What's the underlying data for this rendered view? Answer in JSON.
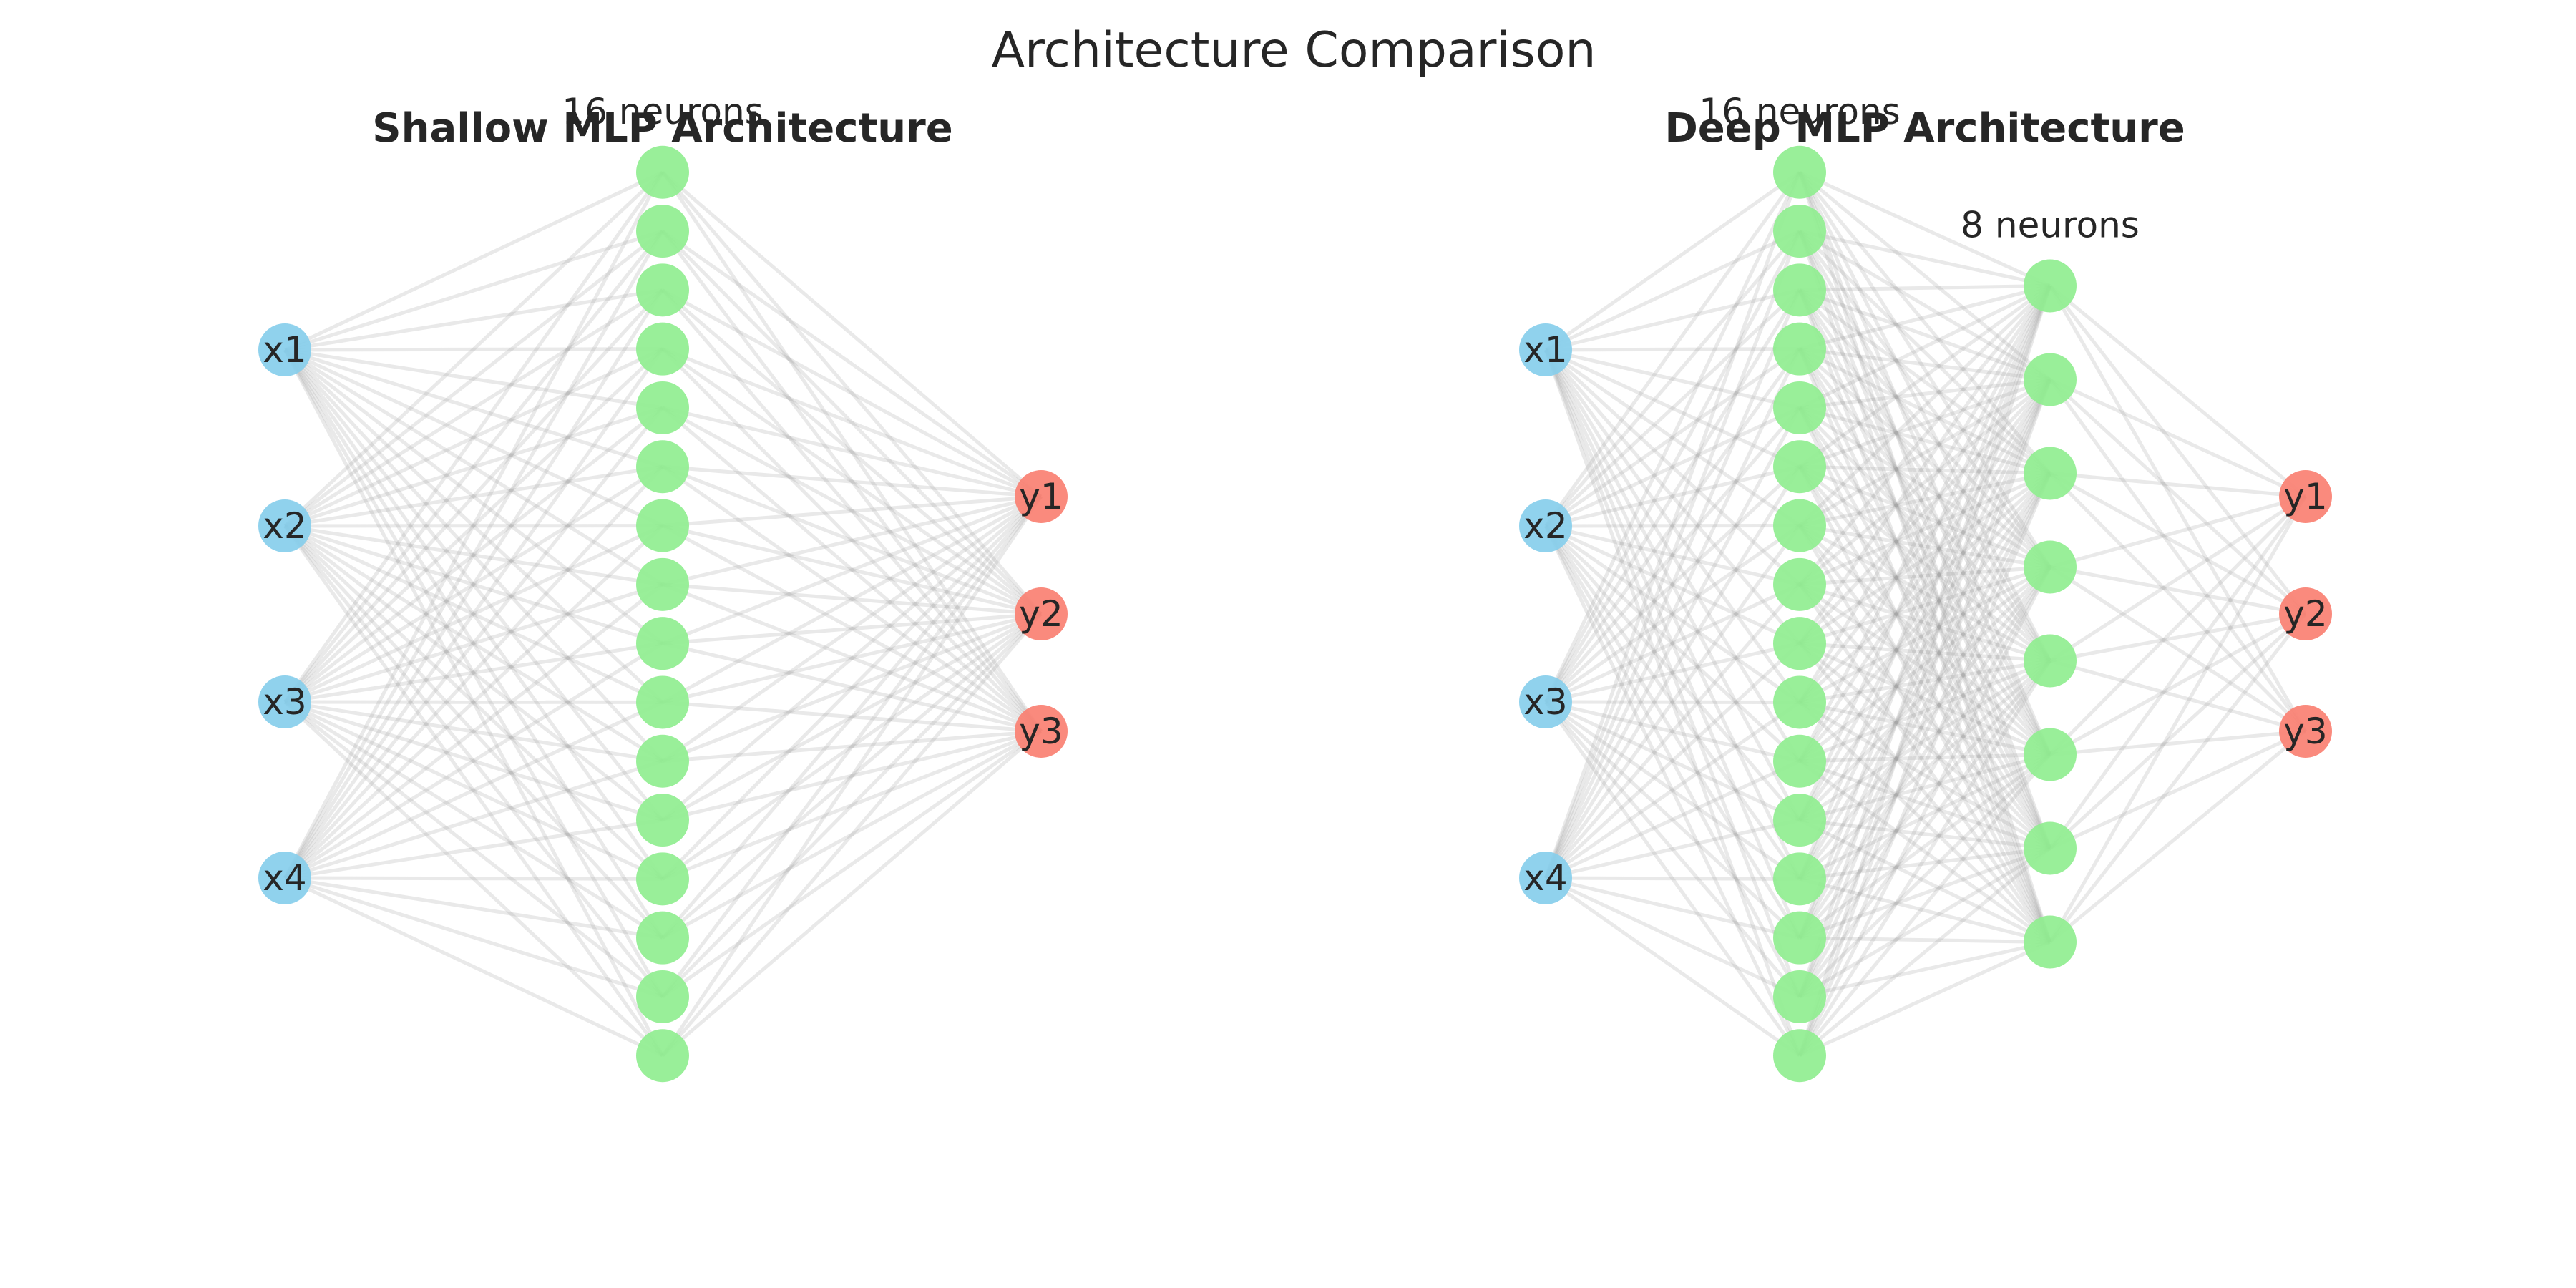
{
  "title": "Architecture Comparison",
  "colors": {
    "input": "#87ceeb",
    "hidden": "#90ee90",
    "output": "#fa8072",
    "edge": "#9a9a9a"
  },
  "panels": [
    {
      "title": "Shallow MLP Architecture",
      "layers": [
        {
          "role": "input",
          "count": 4,
          "labels": [
            "x1",
            "x2",
            "x3",
            "x4"
          ],
          "caption": ""
        },
        {
          "role": "hidden",
          "count": 16,
          "labels": [],
          "caption": "16 neurons"
        },
        {
          "role": "output",
          "count": 3,
          "labels": [
            "y1",
            "y2",
            "y3"
          ],
          "caption": ""
        }
      ]
    },
    {
      "title": "Deep MLP Architecture",
      "layers": [
        {
          "role": "input",
          "count": 4,
          "labels": [
            "x1",
            "x2",
            "x3",
            "x4"
          ],
          "caption": ""
        },
        {
          "role": "hidden",
          "count": 16,
          "labels": [],
          "caption": "16 neurons"
        },
        {
          "role": "hidden",
          "count": 8,
          "labels": [],
          "caption": "8 neurons"
        },
        {
          "role": "output",
          "count": 3,
          "labels": [
            "y1",
            "y2",
            "y3"
          ],
          "caption": ""
        }
      ]
    }
  ]
}
